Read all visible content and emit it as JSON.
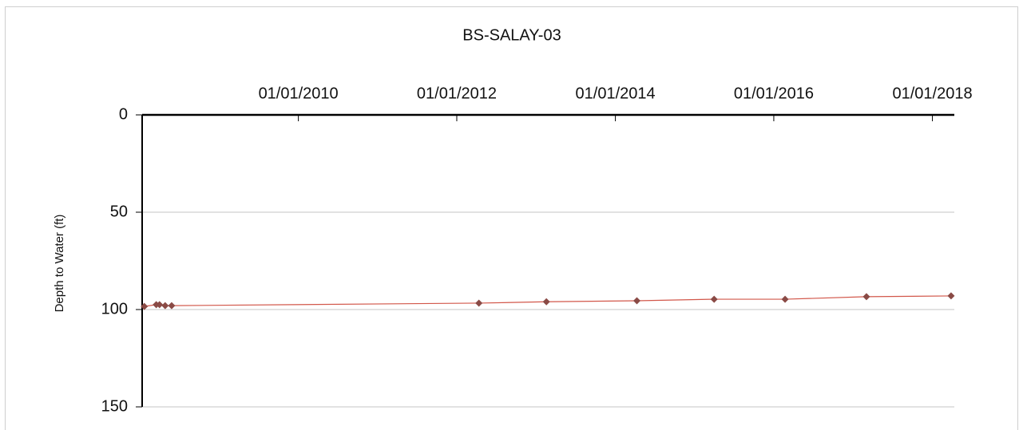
{
  "chart_data": {
    "type": "line",
    "title": "BS-SALAY-03",
    "y_label": "Depth to Water (ft)",
    "x": [
      "01/22/2008",
      "03/17/2008",
      "04/01/2008",
      "04/27/2008",
      "05/27/2008",
      "04/12/2012",
      "02/17/2013",
      "04/10/2014",
      "04/01/2015",
      "02/22/2016",
      "03/03/2017",
      "03/28/2018"
    ],
    "series": [
      {
        "color": "#d2574a",
        "marker_color": "#8a4a45",
        "values": [
          98.4,
          97.5,
          97.5,
          98,
          98,
          96.7,
          96,
          95.5,
          94.7,
          94.7,
          93.4,
          93
        ]
      }
    ],
    "xlim": [
      "01/12/2008",
      "04/12/2018"
    ],
    "xticks": [
      "01/01/2010",
      "01/01/2012",
      "01/01/2014",
      "01/01/2016",
      "01/01/2018"
    ],
    "ylim": [
      0,
      150
    ],
    "yticks": [
      0,
      50,
      100,
      150
    ],
    "y_inverted": true,
    "x_axis_position": "top",
    "grid": true
  }
}
